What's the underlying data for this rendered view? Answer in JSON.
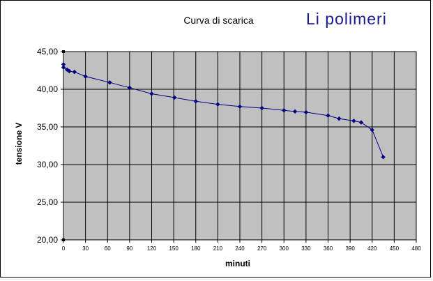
{
  "chart_data": {
    "type": "line",
    "title": "Curva di scarica",
    "brand_title": "Li polimeri",
    "xlabel": "minuti",
    "ylabel": "tensione V",
    "xlim": [
      0,
      480
    ],
    "ylim": [
      20,
      45
    ],
    "xticks": [
      0,
      30,
      60,
      90,
      120,
      150,
      180,
      210,
      240,
      270,
      300,
      330,
      360,
      390,
      420,
      450,
      480
    ],
    "yticks": [
      20,
      25,
      30,
      35,
      40,
      45
    ],
    "ytick_labels": [
      "20,00",
      "25,00",
      "30,00",
      "35,00",
      "40,00",
      "45,00"
    ],
    "grid": true,
    "plot_background": "#c0c0c0",
    "series": [
      {
        "color": "#000080",
        "x": [
          0,
          0,
          5,
          8,
          15,
          30,
          63,
          90,
          120,
          151,
          180,
          210,
          240,
          270,
          300,
          315,
          330,
          360,
          375,
          395,
          405,
          420,
          435
        ],
        "y": [
          43.3,
          42.9,
          42.6,
          42.4,
          42.3,
          41.7,
          40.9,
          40.2,
          39.4,
          38.9,
          38.4,
          38.0,
          37.7,
          37.5,
          37.2,
          37.05,
          36.95,
          36.5,
          36.1,
          35.8,
          35.6,
          34.6,
          31.0
        ]
      }
    ]
  }
}
